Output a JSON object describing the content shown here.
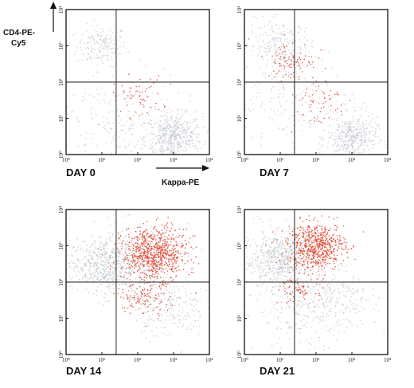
{
  "figure": {
    "y_axis_label_line1": "CD4-PE-",
    "y_axis_label_line2": "Cy5",
    "x_axis_label": "Kappa-PE"
  },
  "colors": {
    "grey_population": "#b9c0c6",
    "red_population": "#e0452e",
    "axis": "#111111"
  },
  "chart_data": [
    {
      "type": "scatter",
      "title": "DAY 0",
      "scale": "log",
      "xlim": [
        1,
        10000
      ],
      "ylim": [
        1,
        10000
      ],
      "x_ticks": [
        "10⁰",
        "10¹",
        "10²",
        "10³",
        "10⁴"
      ],
      "y_ticks": [
        "10⁰",
        "10¹",
        "10²",
        "10³",
        "10⁴"
      ],
      "quadrant_gate": {
        "x": 25,
        "y": 100
      },
      "series": [
        {
          "color": "grey",
          "clusters": [
            {
              "x": 10,
              "y": 1000,
              "spread": 0.35,
              "n": 180
            },
            {
              "x": 1000,
              "y": 3,
              "spread": 0.4,
              "n": 520
            },
            {
              "x": 30,
              "y": 8,
              "spread": 0.9,
              "n": 220
            }
          ]
        },
        {
          "color": "red",
          "clusters": [
            {
              "x": 100,
              "y": 40,
              "spread": 0.35,
              "n": 60
            }
          ]
        }
      ]
    },
    {
      "type": "scatter",
      "title": "DAY 7",
      "scale": "log",
      "xlim": [
        1,
        10000
      ],
      "ylim": [
        1,
        10000
      ],
      "x_ticks": [
        "10⁰",
        "10¹",
        "10²",
        "10³",
        "10⁴"
      ],
      "y_ticks": [
        "10⁰",
        "10¹",
        "10²",
        "10³",
        "10⁴"
      ],
      "quadrant_gate": {
        "x": 25,
        "y": 100
      },
      "series": [
        {
          "color": "grey",
          "clusters": [
            {
              "x": 10,
              "y": 1000,
              "spread": 0.45,
              "n": 220
            },
            {
              "x": 1000,
              "y": 3,
              "spread": 0.35,
              "n": 380
            },
            {
              "x": 30,
              "y": 30,
              "spread": 0.9,
              "n": 220
            }
          ]
        },
        {
          "color": "red",
          "clusters": [
            {
              "x": 20,
              "y": 400,
              "spread": 0.35,
              "n": 90
            },
            {
              "x": 100,
              "y": 30,
              "spread": 0.45,
              "n": 60
            }
          ]
        }
      ]
    },
    {
      "type": "scatter",
      "title": "DAY 14",
      "scale": "log",
      "xlim": [
        1,
        10000
      ],
      "ylim": [
        1,
        10000
      ],
      "x_ticks": [
        "10⁰",
        "10¹",
        "10²",
        "10³",
        "10⁴"
      ],
      "y_ticks": [
        "10⁰",
        "10¹",
        "10²",
        "10³",
        "10⁴"
      ],
      "quadrant_gate": {
        "x": 25,
        "y": 100
      },
      "series": [
        {
          "color": "grey",
          "clusters": [
            {
              "x": 10,
              "y": 300,
              "spread": 0.45,
              "n": 520
            },
            {
              "x": 800,
              "y": 20,
              "spread": 0.5,
              "n": 220
            },
            {
              "x": 100,
              "y": 400,
              "spread": 0.6,
              "n": 380
            }
          ]
        },
        {
          "color": "red",
          "clusters": [
            {
              "x": 300,
              "y": 600,
              "spread": 0.45,
              "n": 750
            },
            {
              "x": 150,
              "y": 40,
              "spread": 0.35,
              "n": 120
            }
          ]
        }
      ]
    },
    {
      "type": "scatter",
      "title": "DAY 21",
      "scale": "log",
      "xlim": [
        1,
        10000
      ],
      "ylim": [
        1,
        10000
      ],
      "x_ticks": [
        "10⁰",
        "10¹",
        "10²",
        "10³",
        "10⁴"
      ],
      "y_ticks": [
        "10⁰",
        "10¹",
        "10²",
        "10³",
        "10⁴"
      ],
      "quadrant_gate": {
        "x": 25,
        "y": 100
      },
      "series": [
        {
          "color": "grey",
          "clusters": [
            {
              "x": 10,
              "y": 400,
              "spread": 0.5,
              "n": 620
            },
            {
              "x": 50,
              "y": 20,
              "spread": 0.7,
              "n": 260
            },
            {
              "x": 500,
              "y": 30,
              "spread": 0.5,
              "n": 160
            }
          ]
        },
        {
          "color": "red",
          "clusters": [
            {
              "x": 100,
              "y": 1000,
              "spread": 0.4,
              "n": 620
            },
            {
              "x": 40,
              "y": 60,
              "spread": 0.3,
              "n": 80
            }
          ]
        }
      ]
    }
  ]
}
